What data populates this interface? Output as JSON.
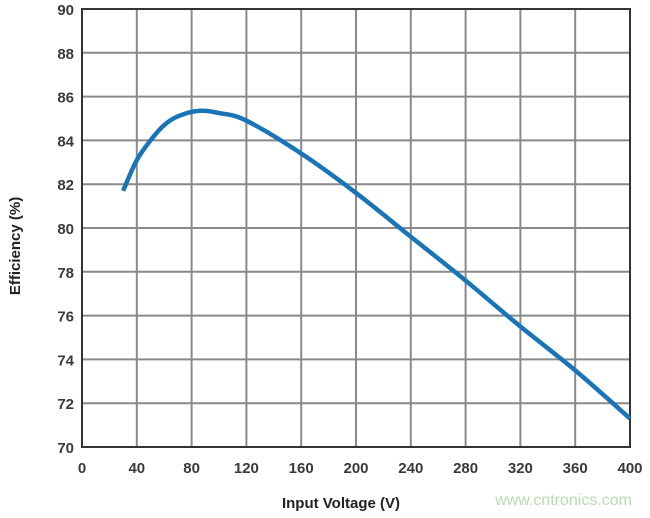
{
  "chart_data": {
    "type": "line",
    "title": "",
    "xlabel": "Input Voltage (V)",
    "ylabel": "Efficiency (%)",
    "xlim": [
      0,
      400
    ],
    "ylim": [
      70,
      90
    ],
    "xticks": [
      0,
      40,
      80,
      120,
      160,
      200,
      240,
      280,
      320,
      360,
      400
    ],
    "yticks": [
      70,
      72,
      74,
      76,
      78,
      80,
      82,
      84,
      86,
      88,
      90
    ],
    "grid": true,
    "series": [
      {
        "color": "#1a75b8",
        "x": [
          30,
          40,
          50,
          60,
          70,
          85,
          100,
          120,
          160,
          200,
          240,
          280,
          320,
          360,
          400
        ],
        "y": [
          81.7,
          83.1,
          84.0,
          84.7,
          85.1,
          85.35,
          85.25,
          84.9,
          83.4,
          81.6,
          79.6,
          77.6,
          75.5,
          73.5,
          71.3
        ]
      }
    ]
  },
  "watermark": "www.cntronics.com"
}
